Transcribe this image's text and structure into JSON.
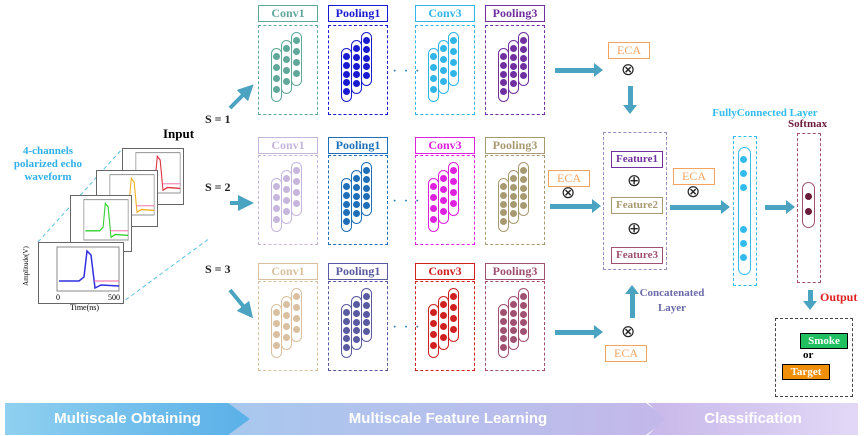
{
  "input": {
    "title": "Input",
    "caption": "4-channels polarized echo waveform",
    "plot_axis": {
      "ylabel": "Amplitude(V)",
      "xlabel": "Time(ns)",
      "x_ticks": [
        "0",
        "500"
      ]
    },
    "channel_colors": [
      "#3030e0",
      "#30d030",
      "#f0b020",
      "#e03040"
    ]
  },
  "scales": [
    "S = 1",
    "S = 2",
    "S = 3"
  ],
  "rows": [
    {
      "blocks": [
        {
          "label": "Conv1",
          "color": "#5fa89a"
        },
        {
          "label": "Pooling1",
          "color": "#1a1ad0"
        },
        {
          "label": "Conv3",
          "color": "#2fb5e8"
        },
        {
          "label": "Pooling3",
          "color": "#7030a0"
        }
      ]
    },
    {
      "blocks": [
        {
          "label": "Conv1",
          "color": "#c6b6dc"
        },
        {
          "label": "Pooling1",
          "color": "#1f6fb8"
        },
        {
          "label": "Conv3",
          "color": "#e020e0"
        },
        {
          "label": "Pooling3",
          "color": "#a89a70"
        }
      ]
    },
    {
      "blocks": [
        {
          "label": "Conv1",
          "color": "#d8c0a0"
        },
        {
          "label": "Pooling1",
          "color": "#5a5aa0"
        },
        {
          "label": "Conv3",
          "color": "#d02020"
        },
        {
          "label": "Pooling3",
          "color": "#a05070"
        }
      ]
    }
  ],
  "eca_label": "ECA",
  "concat": {
    "label": "Concatenated Layer",
    "features": [
      {
        "label": "Feature1",
        "color": "#7030a0"
      },
      {
        "label": "Feature2",
        "color": "#a89a70"
      },
      {
        "label": "Feature3",
        "color": "#a05070"
      }
    ]
  },
  "fc": {
    "label": "FullyConnected Layer",
    "color": "#33bbee"
  },
  "softmax": {
    "label": "Softmax",
    "color": "#6a1a3a"
  },
  "output": {
    "label": "Output",
    "smoke": "Smoke",
    "or": "or",
    "target": "Target"
  },
  "banner": [
    "Multiscale Obtaining",
    "Multiscale Feature Learning",
    "Classification"
  ]
}
